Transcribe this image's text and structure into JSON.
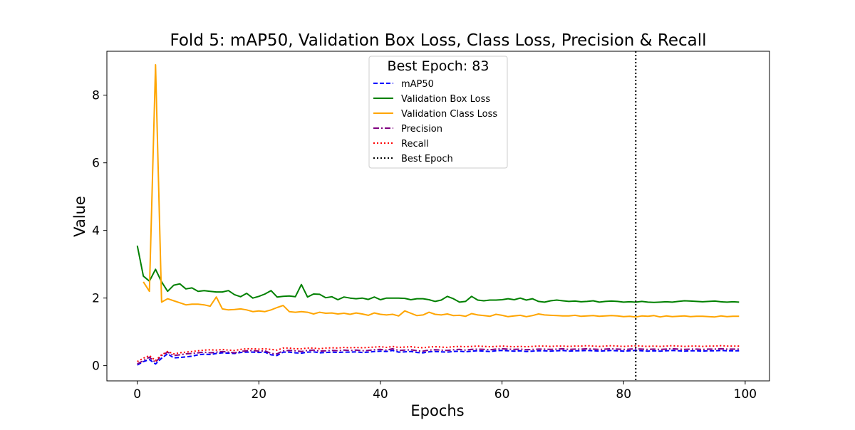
{
  "chart_data": {
    "type": "line",
    "title": "Fold 5: mAP50, Validation Box Loss, Class Loss, Precision & Recall",
    "xlabel": "Epochs",
    "ylabel": "Value",
    "xlim": [
      -5,
      104
    ],
    "ylim": [
      -0.45,
      9.3
    ],
    "xticks": [
      0,
      20,
      40,
      60,
      80,
      100
    ],
    "yticks": [
      0,
      2,
      4,
      6,
      8
    ],
    "grid": false,
    "legend_placement": "upper center",
    "legend_title": "Best Epoch: 83",
    "best_epoch_x": 82,
    "series": [
      {
        "name": "mAP50",
        "color": "#0000ff",
        "style": "dashed",
        "x_start": 0,
        "values": [
          0.02,
          0.12,
          0.18,
          0.05,
          0.22,
          0.35,
          0.23,
          0.24,
          0.26,
          0.28,
          0.32,
          0.34,
          0.33,
          0.36,
          0.38,
          0.37,
          0.36,
          0.39,
          0.4,
          0.4,
          0.39,
          0.4,
          0.32,
          0.3,
          0.4,
          0.4,
          0.38,
          0.37,
          0.4,
          0.41,
          0.38,
          0.39,
          0.4,
          0.39,
          0.4,
          0.4,
          0.41,
          0.39,
          0.4,
          0.42,
          0.43,
          0.42,
          0.45,
          0.4,
          0.41,
          0.42,
          0.39,
          0.38,
          0.41,
          0.42,
          0.41,
          0.4,
          0.42,
          0.43,
          0.41,
          0.43,
          0.44,
          0.43,
          0.42,
          0.44,
          0.45,
          0.44,
          0.43,
          0.44,
          0.42,
          0.43,
          0.44,
          0.44,
          0.43,
          0.44,
          0.45,
          0.43,
          0.44,
          0.44,
          0.45,
          0.44,
          0.43,
          0.44,
          0.45,
          0.44,
          0.43,
          0.44,
          0.45,
          0.44,
          0.43,
          0.44,
          0.43,
          0.44,
          0.45,
          0.44,
          0.43,
          0.44,
          0.44,
          0.43,
          0.44,
          0.44,
          0.45,
          0.44,
          0.44,
          0.44
        ]
      },
      {
        "name": "Validation Box Loss",
        "color": "#008000",
        "style": "solid",
        "x_start": 0,
        "values": [
          3.55,
          2.65,
          2.5,
          2.85,
          2.48,
          2.2,
          2.38,
          2.42,
          2.27,
          2.3,
          2.2,
          2.22,
          2.2,
          2.18,
          2.18,
          2.22,
          2.1,
          2.04,
          2.14,
          2.0,
          2.05,
          2.12,
          2.22,
          2.03,
          2.05,
          2.06,
          2.04,
          2.4,
          2.03,
          2.12,
          2.11,
          2.01,
          2.04,
          1.95,
          2.03,
          2.0,
          1.98,
          2.0,
          1.96,
          2.03,
          1.95,
          2.0,
          2.0,
          2.0,
          1.99,
          1.95,
          1.98,
          1.98,
          1.95,
          1.9,
          1.94,
          2.05,
          1.98,
          1.88,
          1.9,
          2.05,
          1.94,
          1.92,
          1.94,
          1.94,
          1.95,
          1.98,
          1.95,
          2.0,
          1.94,
          1.98,
          1.9,
          1.88,
          1.92,
          1.94,
          1.92,
          1.9,
          1.91,
          1.89,
          1.9,
          1.92,
          1.88,
          1.9,
          1.91,
          1.9,
          1.88,
          1.89,
          1.88,
          1.9,
          1.88,
          1.87,
          1.88,
          1.89,
          1.88,
          1.9,
          1.92,
          1.91,
          1.9,
          1.89,
          1.9,
          1.91,
          1.89,
          1.88,
          1.89,
          1.88
        ]
      },
      {
        "name": "Validation Class Loss",
        "color": "#ffa500",
        "style": "solid",
        "x_start": 1,
        "values": [
          2.48,
          2.2,
          8.9,
          1.88,
          1.98,
          1.92,
          1.86,
          1.8,
          1.82,
          1.82,
          1.8,
          1.76,
          2.03,
          1.68,
          1.65,
          1.66,
          1.68,
          1.65,
          1.6,
          1.62,
          1.6,
          1.65,
          1.72,
          1.78,
          1.6,
          1.58,
          1.6,
          1.58,
          1.53,
          1.58,
          1.55,
          1.56,
          1.53,
          1.55,
          1.52,
          1.56,
          1.53,
          1.49,
          1.56,
          1.52,
          1.5,
          1.52,
          1.47,
          1.62,
          1.55,
          1.48,
          1.5,
          1.58,
          1.52,
          1.5,
          1.53,
          1.48,
          1.49,
          1.46,
          1.54,
          1.5,
          1.48,
          1.46,
          1.52,
          1.49,
          1.45,
          1.47,
          1.49,
          1.45,
          1.48,
          1.53,
          1.5,
          1.49,
          1.48,
          1.47,
          1.47,
          1.49,
          1.46,
          1.47,
          1.48,
          1.46,
          1.47,
          1.48,
          1.47,
          1.45,
          1.46,
          1.44,
          1.47,
          1.46,
          1.48,
          1.44,
          1.47,
          1.45,
          1.46,
          1.47,
          1.45,
          1.46,
          1.46,
          1.45,
          1.44,
          1.47,
          1.45,
          1.46,
          1.46
        ]
      },
      {
        "name": "Precision",
        "color": "#800080",
        "style": "dashdot",
        "x_start": 0,
        "values": [
          0.05,
          0.15,
          0.25,
          0.1,
          0.3,
          0.4,
          0.3,
          0.32,
          0.35,
          0.36,
          0.38,
          0.4,
          0.38,
          0.4,
          0.42,
          0.4,
          0.38,
          0.42,
          0.44,
          0.45,
          0.43,
          0.44,
          0.36,
          0.35,
          0.44,
          0.45,
          0.44,
          0.42,
          0.45,
          0.46,
          0.43,
          0.44,
          0.45,
          0.44,
          0.46,
          0.45,
          0.46,
          0.44,
          0.45,
          0.47,
          0.48,
          0.46,
          0.5,
          0.45,
          0.46,
          0.47,
          0.44,
          0.43,
          0.46,
          0.47,
          0.46,
          0.45,
          0.47,
          0.48,
          0.46,
          0.48,
          0.49,
          0.48,
          0.47,
          0.49,
          0.5,
          0.49,
          0.48,
          0.49,
          0.47,
          0.48,
          0.49,
          0.49,
          0.48,
          0.49,
          0.5,
          0.48,
          0.49,
          0.49,
          0.5,
          0.49,
          0.48,
          0.49,
          0.5,
          0.49,
          0.48,
          0.49,
          0.5,
          0.49,
          0.48,
          0.49,
          0.48,
          0.49,
          0.5,
          0.49,
          0.48,
          0.49,
          0.49,
          0.48,
          0.49,
          0.49,
          0.5,
          0.49,
          0.49,
          0.49
        ]
      },
      {
        "name": "Recall",
        "color": "#ff0000",
        "style": "dotted",
        "x_start": 0,
        "values": [
          0.12,
          0.22,
          0.3,
          0.15,
          0.32,
          0.42,
          0.35,
          0.38,
          0.4,
          0.42,
          0.44,
          0.46,
          0.47,
          0.46,
          0.48,
          0.46,
          0.45,
          0.48,
          0.5,
          0.5,
          0.49,
          0.5,
          0.48,
          0.46,
          0.52,
          0.52,
          0.5,
          0.5,
          0.52,
          0.52,
          0.5,
          0.52,
          0.53,
          0.52,
          0.54,
          0.53,
          0.54,
          0.53,
          0.54,
          0.55,
          0.56,
          0.54,
          0.57,
          0.54,
          0.55,
          0.56,
          0.54,
          0.53,
          0.55,
          0.56,
          0.55,
          0.54,
          0.56,
          0.57,
          0.56,
          0.57,
          0.58,
          0.57,
          0.56,
          0.57,
          0.58,
          0.57,
          0.56,
          0.57,
          0.56,
          0.57,
          0.58,
          0.58,
          0.57,
          0.58,
          0.58,
          0.57,
          0.58,
          0.58,
          0.59,
          0.58,
          0.57,
          0.58,
          0.59,
          0.58,
          0.57,
          0.58,
          0.59,
          0.58,
          0.57,
          0.58,
          0.57,
          0.58,
          0.59,
          0.58,
          0.57,
          0.58,
          0.58,
          0.57,
          0.58,
          0.58,
          0.59,
          0.58,
          0.58,
          0.58
        ]
      }
    ],
    "legend_entries": [
      {
        "name": "mAP50",
        "color": "#0000ff",
        "style": "dashed"
      },
      {
        "name": "Validation Box Loss",
        "color": "#008000",
        "style": "solid"
      },
      {
        "name": "Validation Class Loss",
        "color": "#ffa500",
        "style": "solid"
      },
      {
        "name": "Precision",
        "color": "#800080",
        "style": "dashdot"
      },
      {
        "name": "Recall",
        "color": "#ff0000",
        "style": "dotted"
      },
      {
        "name": "Best Epoch",
        "color": "#000000",
        "style": "dotted"
      }
    ]
  }
}
